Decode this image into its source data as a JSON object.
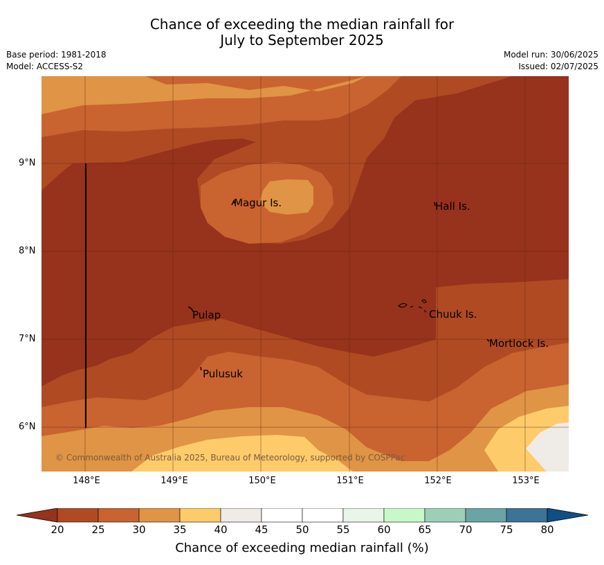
{
  "title_line1": "Chance of exceeding the median rainfall for",
  "title_line2": "July to September 2025",
  "meta": {
    "base_period": "Base period: 1981-2018",
    "model": "Model: ACCESS-S2",
    "model_run": "Model run: 30/06/2025",
    "issued": "Issued: 02/07/2025"
  },
  "axes": {
    "y_ticks": [
      "9°N",
      "8°N",
      "7°N",
      "6°N"
    ],
    "x_ticks": [
      "148°E",
      "149°E",
      "150°E",
      "151°E",
      "152°E",
      "153°E"
    ]
  },
  "places": {
    "magur": "Magur Is.",
    "hall": "Hall Is.",
    "pulap": "Pulap",
    "chuuk": "Chuuk Is.",
    "mortlock": "Mortlock Is.",
    "pulusuk": "Pulusuk"
  },
  "copyright": "© Commonwealth of Australia 2025, Bureau of Meteorology, supported by COSPPac",
  "colorbar": {
    "label": "Chance of exceeding median rainfall (%)",
    "ticks": [
      "20",
      "25",
      "30",
      "35",
      "40",
      "45",
      "50",
      "55",
      "60",
      "65",
      "70",
      "75",
      "80"
    ],
    "colors": [
      "#b04a23",
      "#c96330",
      "#e09445",
      "#fdcb6a",
      "#efebe7",
      "#ffffff",
      "#ffffff",
      "#e9f5ea",
      "#c8f8c8",
      "#9dcfb8",
      "#6ba4a4",
      "#3c7396"
    ],
    "under_color": "#97321c",
    "over_color": "#104f86"
  },
  "map_colors": {
    "c15_20": "#97321c",
    "c20_25": "#b04a23",
    "c25_30": "#c96330",
    "c30_35": "#e09445",
    "c35_40": "#fdcb6a",
    "c40_45": "#efebe7"
  }
}
